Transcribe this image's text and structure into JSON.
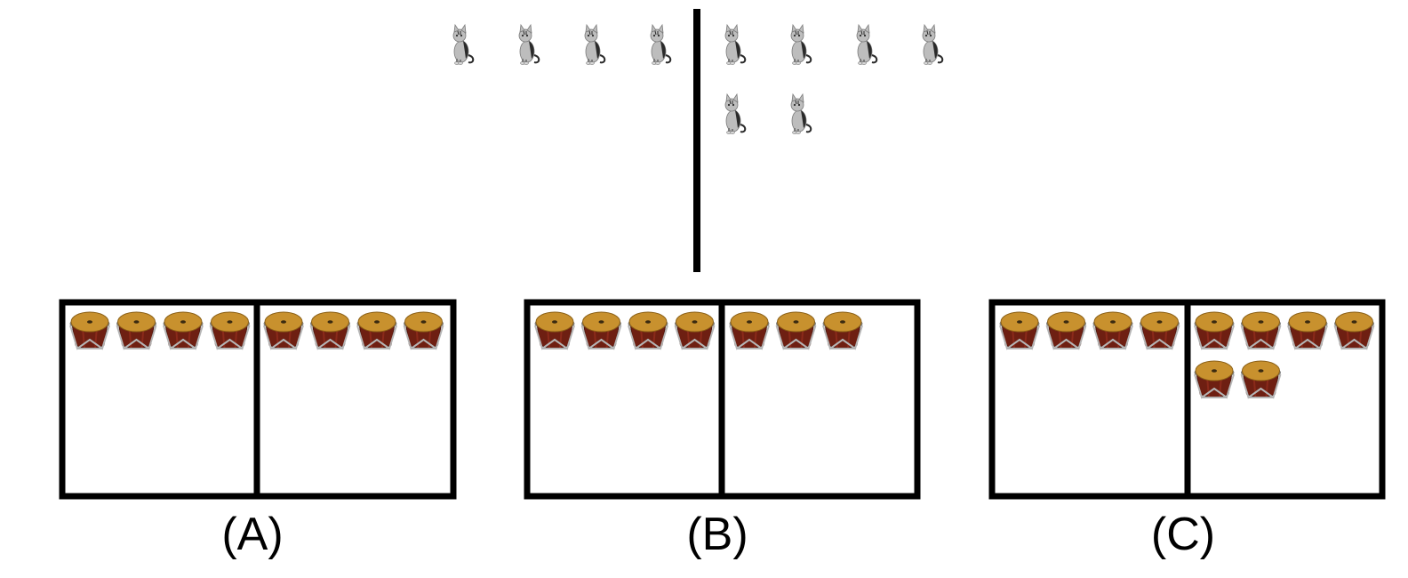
{
  "prompt": {
    "icon": "cat-icon",
    "left_count": 4,
    "right_count": 6
  },
  "options": [
    {
      "label": "(A)",
      "icon": "drum-icon",
      "left_count": 4,
      "right_count": 4
    },
    {
      "label": "(B)",
      "icon": "drum-icon",
      "left_count": 4,
      "right_count": 3
    },
    {
      "label": "(C)",
      "icon": "drum-icon",
      "left_count": 4,
      "right_count": 6
    }
  ],
  "colors": {
    "line": "#000000",
    "drum_head": "#C8912E",
    "drum_body": "#6E1F12",
    "drum_rim": "#B5B5B5",
    "cat_fur": "#BDBDBD",
    "cat_dark": "#2A2A2A"
  }
}
